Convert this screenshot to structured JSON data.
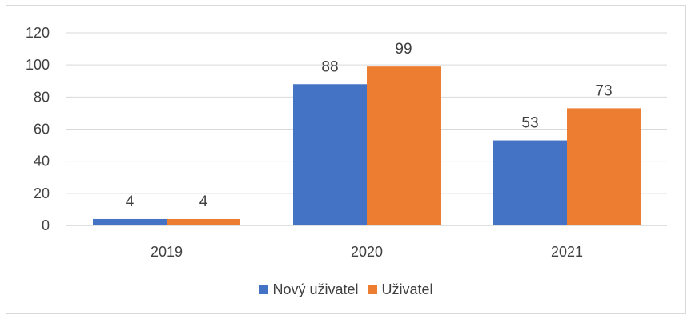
{
  "chart_data": {
    "type": "bar",
    "categories": [
      "2019",
      "2020",
      "2021"
    ],
    "series": [
      {
        "name": "Nový uživatel",
        "values": [
          4,
          88,
          53
        ],
        "color": "#4472C4"
      },
      {
        "name": "Uživatel",
        "values": [
          4,
          99,
          73
        ],
        "color": "#ED7D31"
      }
    ],
    "ylim": [
      0,
      120
    ],
    "yticks": [
      0,
      20,
      40,
      60,
      80,
      100,
      120
    ],
    "grid": true,
    "legend_position": "bottom",
    "data_labels": true
  }
}
